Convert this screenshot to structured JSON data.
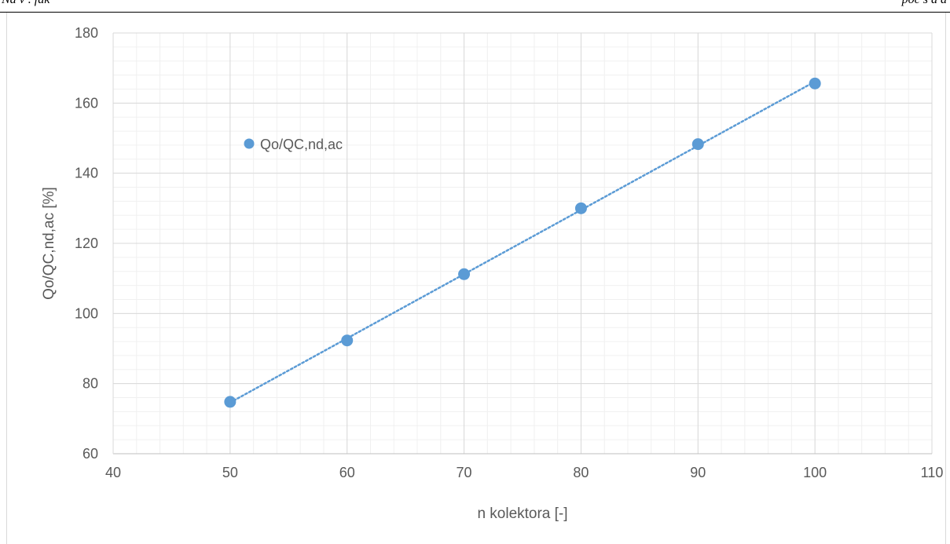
{
  "page_header": {
    "left": "Na v . fak",
    "right": "poč s a a"
  },
  "chart_data": {
    "type": "scatter",
    "title": "",
    "xlabel": "n kolektora [-]",
    "ylabel": "Qo/QC,nd,ac [%]",
    "xlim": [
      40,
      110
    ],
    "ylim": [
      60,
      180
    ],
    "xticks": [
      40,
      50,
      60,
      70,
      80,
      90,
      100,
      110
    ],
    "yticks": [
      60,
      80,
      100,
      120,
      140,
      160,
      180
    ],
    "grid": true,
    "minor_grid": true,
    "legend_position": "top-left",
    "series": [
      {
        "name": "Qo/QC,nd,ac",
        "color": "#5b9bd5",
        "trendline": "linear-dotted",
        "points": [
          {
            "x": 50,
            "y": 74.8
          },
          {
            "x": 60,
            "y": 92.3
          },
          {
            "x": 70,
            "y": 111.2
          },
          {
            "x": 80,
            "y": 130.0
          },
          {
            "x": 90,
            "y": 148.3
          },
          {
            "x": 100,
            "y": 165.6
          }
        ]
      }
    ]
  }
}
